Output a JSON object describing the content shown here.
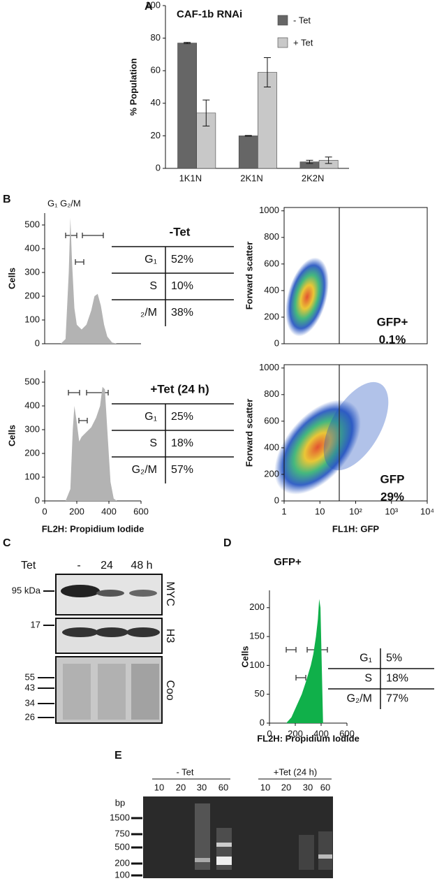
{
  "panel_labels": [
    "A",
    "B",
    "C",
    "D",
    "E"
  ],
  "chart_data": [
    {
      "type": "bar",
      "title": "CAF-1b RNAi",
      "y_label": "% Population",
      "categories": [
        "1K1N",
        "2K1N",
        "2K2N"
      ],
      "series": [
        {
          "name": "- Tet",
          "color": "#666666",
          "values": [
            77,
            20,
            4
          ],
          "errors": [
            0.4,
            0.2,
            1
          ]
        },
        {
          "name": "+ Tet",
          "color": "#c8c8c8",
          "values": [
            34,
            59,
            5
          ],
          "errors": [
            8,
            9,
            2
          ]
        }
      ],
      "ylim": [
        0,
        100
      ],
      "yticks": [
        0,
        20,
        40,
        60,
        80,
        100
      ]
    },
    {
      "type": "area",
      "y_label": "Cells",
      "annotation": "G₁ G₂/M",
      "color": "#b3b3b3",
      "x": [
        100,
        130,
        150,
        160,
        170,
        185,
        200,
        230,
        260,
        290,
        310,
        330,
        350,
        370,
        390,
        420,
        450
      ],
      "values": [
        0,
        20,
        300,
        530,
        350,
        150,
        80,
        60,
        80,
        140,
        200,
        210,
        160,
        80,
        30,
        5,
        0
      ],
      "xlim": [
        0,
        600
      ],
      "ylim": [
        0,
        550
      ],
      "yticks": [
        0,
        100,
        200,
        300,
        400,
        500
      ]
    },
    {
      "type": "area",
      "y_label": "Cells",
      "x_label": "FL2H: Propidium Iodide",
      "color": "#b3b3b3",
      "x": [
        130,
        160,
        175,
        185,
        200,
        215,
        230,
        260,
        290,
        320,
        345,
        360,
        375,
        390,
        410,
        430,
        450
      ],
      "values": [
        0,
        50,
        300,
        400,
        330,
        250,
        270,
        290,
        310,
        350,
        400,
        480,
        470,
        300,
        80,
        10,
        0
      ],
      "xlim": [
        0,
        600
      ],
      "xticks": [
        0,
        200,
        400,
        600
      ],
      "ylim": [
        0,
        550
      ],
      "yticks": [
        0,
        100,
        200,
        300,
        400,
        500
      ]
    },
    {
      "type": "scatter",
      "y_label": "Forward scatter",
      "log_x": true,
      "annotations": [
        "GFP+",
        "0.1%"
      ],
      "xlim": [
        1,
        10000
      ],
      "ylim": [
        0,
        1025
      ],
      "yticks": [
        0,
        200,
        400,
        600,
        800,
        1000
      ]
    },
    {
      "type": "scatter",
      "y_label": "Forward scatter",
      "x_label": "FL1H: GFP",
      "log_x": true,
      "annotations": [
        "GFP",
        "29%"
      ],
      "xlim": [
        1,
        10000
      ],
      "xticks": [
        1,
        10,
        {
          "value": 100,
          "label": "10²"
        },
        {
          "value": 1000,
          "label": "10³"
        },
        {
          "value": 10000,
          "label": "10⁴"
        }
      ],
      "ylim": [
        0,
        1025
      ],
      "yticks": [
        0,
        200,
        400,
        600,
        800,
        1000
      ]
    },
    {
      "type": "area",
      "title": "GFP+",
      "y_label": "Cells",
      "x_label": "FL2H: Propidium Iodide",
      "color": "#10b04a",
      "x": [
        130,
        170,
        200,
        250,
        280,
        300,
        320,
        340,
        360,
        375,
        385,
        395,
        405,
        415
      ],
      "values": [
        0,
        10,
        25,
        50,
        70,
        85,
        100,
        120,
        150,
        180,
        215,
        200,
        100,
        0
      ],
      "xlim": [
        0,
        600
      ],
      "xticks": [
        0,
        200,
        400,
        600
      ],
      "ylim": [
        0,
        230
      ],
      "yticks": [
        0,
        50,
        100,
        150,
        200
      ]
    }
  ],
  "tables": [
    {
      "title": "-Tet",
      "rows": [
        [
          "G₁",
          "52%"
        ],
        [
          "S",
          "10%"
        ],
        [
          "₂/M",
          "38%"
        ]
      ]
    },
    {
      "title": "+Tet (24 h)",
      "rows": [
        [
          "G₁",
          "25%"
        ],
        [
          "S",
          "18%"
        ],
        [
          "G₂/M",
          "57%"
        ]
      ]
    },
    {
      "rows": [
        [
          "G₁",
          "5%"
        ],
        [
          "S",
          "18%"
        ],
        [
          "G₂/M",
          "77%"
        ]
      ]
    }
  ],
  "blot": {
    "condition_label": "Tet",
    "lanes": [
      "-",
      "24",
      "48 h"
    ],
    "markers": [
      "95 kDa",
      "17",
      "55",
      "43",
      "34",
      "26"
    ],
    "panels": [
      "MYC",
      "H3",
      "Coo"
    ]
  },
  "gel": {
    "groups": [
      "- Tet",
      "+Tet (24 h)"
    ],
    "lanes": [
      "10",
      "20",
      "30",
      "60",
      "10",
      "20",
      "30",
      "60"
    ],
    "unit": "bp",
    "markers": [
      "1500",
      "750",
      "500",
      "200",
      "100"
    ]
  }
}
